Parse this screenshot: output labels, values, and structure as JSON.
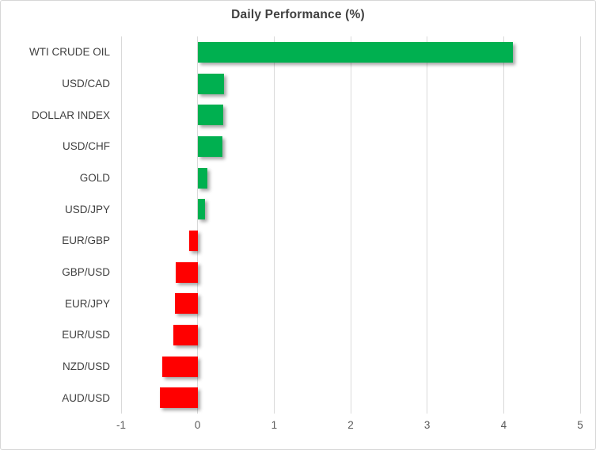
{
  "chart_data": {
    "type": "bar",
    "orientation": "horizontal",
    "title": "Daily Performance (%)",
    "categories": [
      "WTI CRUDE OIL",
      "USD/CAD",
      "DOLLAR INDEX",
      "USD/CHF",
      "GOLD",
      "USD/JPY",
      "EUR/GBP",
      "GBP/USD",
      "EUR/JPY",
      "EUR/USD",
      "NZD/USD",
      "AUD/USD"
    ],
    "values": [
      4.12,
      0.35,
      0.33,
      0.32,
      0.13,
      0.1,
      -0.11,
      -0.29,
      -0.3,
      -0.32,
      -0.46,
      -0.49
    ],
    "xlim": [
      -1,
      5
    ],
    "x_ticks": [
      "-1",
      "0",
      "1",
      "2",
      "3",
      "4",
      "5"
    ],
    "grid": true,
    "legend": "none",
    "colors": {
      "positive": "#00B050",
      "negative": "#FF0000",
      "title_text": "#404040",
      "category_text": "#3f3f3f",
      "axis_text": "#595959",
      "gridline": "#D9D9D9"
    }
  }
}
